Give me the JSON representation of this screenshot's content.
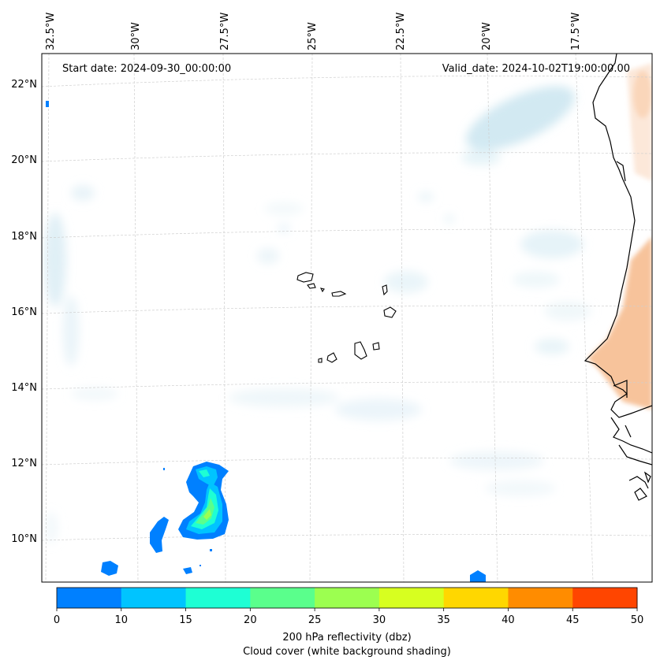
{
  "map": {
    "start_date": "Start date: 2024-09-30_00:00:00",
    "valid_date": "Valid_date: 2024-10-02T19:00:00.00",
    "lon_labels": [
      "32.5°W",
      "30°W",
      "27.5°W",
      "25°W",
      "22.5°W",
      "20°W",
      "17.5°W"
    ],
    "lat_labels": [
      "22°N",
      "20°N",
      "18°N",
      "16°N",
      "14°N",
      "12°N",
      "10°N"
    ]
  },
  "colorbar": {
    "ticks": [
      "0",
      "10",
      "15",
      "20",
      "25",
      "30",
      "35",
      "40",
      "45",
      "50"
    ],
    "colors": [
      "#0080ff",
      "#00c4ff",
      "#1effd4",
      "#5aff8c",
      "#9cff50",
      "#d7ff20",
      "#ffd700",
      "#ff8c00",
      "#ff4500"
    ],
    "label_line1": "200 hPa reflectivity (dbz)",
    "label_line2": "Cloud cover (white background shading)"
  }
}
